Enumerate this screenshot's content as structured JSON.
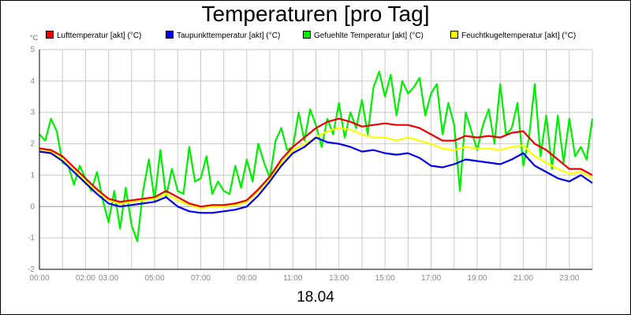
{
  "chart_data": {
    "type": "line",
    "title": "Temperaturen [pro Tag]",
    "date_label": "18.04",
    "unit_label": "°C",
    "xlabel": "",
    "ylabel": "°C",
    "xlim": [
      0,
      24
    ],
    "ylim": [
      -2,
      5
    ],
    "grid": true,
    "legend_position": "top",
    "x_ticks": [
      {
        "v": 0,
        "label": "00:00"
      },
      {
        "v": 2,
        "label": "02:00"
      },
      {
        "v": 3,
        "label": "03:00"
      },
      {
        "v": 5,
        "label": "05:00"
      },
      {
        "v": 7,
        "label": "07:00"
      },
      {
        "v": 9,
        "label": "09:00"
      },
      {
        "v": 11,
        "label": "11:00"
      },
      {
        "v": 13,
        "label": "13:00"
      },
      {
        "v": 15,
        "label": "15:00"
      },
      {
        "v": 17,
        "label": "17:00"
      },
      {
        "v": 19,
        "label": "19:00"
      },
      {
        "v": 21,
        "label": "21:00"
      },
      {
        "v": 23,
        "label": "23:00"
      }
    ],
    "y_ticks": [
      -2,
      -1,
      0,
      1,
      2,
      3,
      4,
      5
    ],
    "series": [
      {
        "name": "Gefuehlte Temperatur [akt] (°C)",
        "color": "#00ee00",
        "points": [
          [
            0,
            2.3
          ],
          [
            0.25,
            2.1
          ],
          [
            0.5,
            2.8
          ],
          [
            0.75,
            2.4
          ],
          [
            1,
            1.4
          ],
          [
            1.25,
            1.3
          ],
          [
            1.5,
            0.7
          ],
          [
            1.75,
            1.3
          ],
          [
            2,
            0.9
          ],
          [
            2.25,
            0.5
          ],
          [
            2.5,
            1.1
          ],
          [
            2.75,
            0.2
          ],
          [
            3,
            -0.5
          ],
          [
            3.25,
            0.5
          ],
          [
            3.5,
            -0.7
          ],
          [
            3.75,
            0.6
          ],
          [
            4,
            -0.6
          ],
          [
            4.25,
            -1.1
          ],
          [
            4.5,
            0.5
          ],
          [
            4.75,
            1.5
          ],
          [
            5,
            0.2
          ],
          [
            5.25,
            1.8
          ],
          [
            5.5,
            0.3
          ],
          [
            5.75,
            1.2
          ],
          [
            6,
            0.5
          ],
          [
            6.25,
            0.4
          ],
          [
            6.5,
            1.9
          ],
          [
            6.75,
            0.8
          ],
          [
            7,
            0.9
          ],
          [
            7.25,
            1.6
          ],
          [
            7.5,
            0.4
          ],
          [
            7.75,
            0.8
          ],
          [
            8,
            0.5
          ],
          [
            8.25,
            0.4
          ],
          [
            8.5,
            1.3
          ],
          [
            8.75,
            0.6
          ],
          [
            9,
            1.5
          ],
          [
            9.25,
            0.8
          ],
          [
            9.5,
            2.0
          ],
          [
            9.75,
            1.4
          ],
          [
            10,
            0.9
          ],
          [
            10.25,
            2.1
          ],
          [
            10.5,
            2.5
          ],
          [
            10.75,
            1.8
          ],
          [
            11,
            1.9
          ],
          [
            11.25,
            3.0
          ],
          [
            11.5,
            2.1
          ],
          [
            11.75,
            3.1
          ],
          [
            12,
            2.6
          ],
          [
            12.25,
            1.9
          ],
          [
            12.5,
            2.8
          ],
          [
            12.75,
            2.3
          ],
          [
            13,
            3.3
          ],
          [
            13.25,
            2.2
          ],
          [
            13.5,
            3.0
          ],
          [
            13.75,
            2.5
          ],
          [
            14,
            3.4
          ],
          [
            14.25,
            2.3
          ],
          [
            14.5,
            3.8
          ],
          [
            14.75,
            4.3
          ],
          [
            15,
            3.5
          ],
          [
            15.25,
            4.2
          ],
          [
            15.5,
            2.9
          ],
          [
            15.75,
            4.0
          ],
          [
            16,
            3.6
          ],
          [
            16.25,
            3.8
          ],
          [
            16.5,
            4.1
          ],
          [
            16.75,
            2.9
          ],
          [
            17,
            3.6
          ],
          [
            17.25,
            3.9
          ],
          [
            17.5,
            2.3
          ],
          [
            17.75,
            3.3
          ],
          [
            18,
            2.6
          ],
          [
            18.25,
            0.5
          ],
          [
            18.5,
            3.0
          ],
          [
            18.75,
            2.4
          ],
          [
            19,
            1.8
          ],
          [
            19.25,
            2.6
          ],
          [
            19.5,
            3.1
          ],
          [
            19.75,
            2.0
          ],
          [
            20,
            3.9
          ],
          [
            20.25,
            2.3
          ],
          [
            20.5,
            2.5
          ],
          [
            20.75,
            3.3
          ],
          [
            21,
            1.3
          ],
          [
            21.25,
            2.2
          ],
          [
            21.5,
            3.9
          ],
          [
            21.75,
            1.6
          ],
          [
            22,
            2.9
          ],
          [
            22.25,
            1.2
          ],
          [
            22.5,
            2.9
          ],
          [
            22.75,
            1.4
          ],
          [
            23,
            2.8
          ],
          [
            23.25,
            1.6
          ],
          [
            23.5,
            1.9
          ],
          [
            23.75,
            1.5
          ],
          [
            24,
            2.8
          ]
        ]
      },
      {
        "name": "Feuchtkugeltemperatur [akt] (°C)",
        "color": "#ffff00",
        "points": [
          [
            0,
            1.8
          ],
          [
            0.5,
            1.75
          ],
          [
            1,
            1.5
          ],
          [
            1.5,
            1.2
          ],
          [
            2,
            0.8
          ],
          [
            2.5,
            0.5
          ],
          [
            3,
            0.2
          ],
          [
            3.5,
            0.1
          ],
          [
            4,
            0.15
          ],
          [
            4.5,
            0.2
          ],
          [
            5,
            0.25
          ],
          [
            5.5,
            0.4
          ],
          [
            6,
            0.2
          ],
          [
            6.5,
            0.05
          ],
          [
            7,
            -0.05
          ],
          [
            7.5,
            0.0
          ],
          [
            8,
            0.0
          ],
          [
            8.5,
            0.05
          ],
          [
            9,
            0.15
          ],
          [
            9.5,
            0.5
          ],
          [
            10,
            0.9
          ],
          [
            10.5,
            1.4
          ],
          [
            11,
            1.8
          ],
          [
            11.5,
            2.0
          ],
          [
            12,
            2.2
          ],
          [
            12.5,
            2.4
          ],
          [
            13,
            2.5
          ],
          [
            13.5,
            2.45
          ],
          [
            14,
            2.3
          ],
          [
            14.5,
            2.2
          ],
          [
            15,
            2.2
          ],
          [
            15.5,
            2.1
          ],
          [
            16,
            2.2
          ],
          [
            16.5,
            2.1
          ],
          [
            17,
            2.0
          ],
          [
            17.5,
            1.85
          ],
          [
            18,
            1.8
          ],
          [
            18.5,
            1.9
          ],
          [
            19,
            1.85
          ],
          [
            19.5,
            1.85
          ],
          [
            20,
            1.8
          ],
          [
            20.5,
            1.9
          ],
          [
            21,
            1.95
          ],
          [
            21.5,
            1.6
          ],
          [
            22,
            1.4
          ],
          [
            22.5,
            1.2
          ],
          [
            23,
            1.05
          ],
          [
            23.5,
            1.1
          ],
          [
            24,
            0.9
          ]
        ]
      },
      {
        "name": "Lufttemperatur [akt] (°C)",
        "color": "#ee0000",
        "points": [
          [
            0,
            1.85
          ],
          [
            0.5,
            1.8
          ],
          [
            1,
            1.6
          ],
          [
            1.5,
            1.25
          ],
          [
            2,
            0.9
          ],
          [
            2.5,
            0.55
          ],
          [
            3,
            0.25
          ],
          [
            3.5,
            0.15
          ],
          [
            4,
            0.2
          ],
          [
            4.5,
            0.25
          ],
          [
            5,
            0.3
          ],
          [
            5.5,
            0.5
          ],
          [
            6,
            0.3
          ],
          [
            6.5,
            0.1
          ],
          [
            7,
            0.0
          ],
          [
            7.5,
            0.05
          ],
          [
            8,
            0.05
          ],
          [
            8.5,
            0.1
          ],
          [
            9,
            0.2
          ],
          [
            9.5,
            0.55
          ],
          [
            10,
            0.95
          ],
          [
            10.5,
            1.5
          ],
          [
            11,
            1.9
          ],
          [
            11.5,
            2.2
          ],
          [
            12,
            2.5
          ],
          [
            12.5,
            2.7
          ],
          [
            13,
            2.8
          ],
          [
            13.5,
            2.7
          ],
          [
            14,
            2.55
          ],
          [
            14.5,
            2.6
          ],
          [
            15,
            2.65
          ],
          [
            15.5,
            2.6
          ],
          [
            16,
            2.6
          ],
          [
            16.5,
            2.5
          ],
          [
            17,
            2.3
          ],
          [
            17.5,
            2.1
          ],
          [
            18,
            2.1
          ],
          [
            18.5,
            2.25
          ],
          [
            19,
            2.2
          ],
          [
            19.5,
            2.25
          ],
          [
            20,
            2.2
          ],
          [
            20.5,
            2.35
          ],
          [
            21,
            2.4
          ],
          [
            21.5,
            2.0
          ],
          [
            22,
            1.8
          ],
          [
            22.5,
            1.5
          ],
          [
            23,
            1.2
          ],
          [
            23.5,
            1.2
          ],
          [
            24,
            1.0
          ]
        ]
      },
      {
        "name": "Taupunkttemperatur [akt] (°C)",
        "color": "#0000ee",
        "points": [
          [
            0,
            1.75
          ],
          [
            0.5,
            1.7
          ],
          [
            1,
            1.45
          ],
          [
            1.5,
            1.1
          ],
          [
            2,
            0.75
          ],
          [
            2.5,
            0.4
          ],
          [
            3,
            0.1
          ],
          [
            3.5,
            0.0
          ],
          [
            4,
            0.05
          ],
          [
            4.5,
            0.1
          ],
          [
            5,
            0.15
          ],
          [
            5.5,
            0.3
          ],
          [
            6,
            0.0
          ],
          [
            6.5,
            -0.15
          ],
          [
            7,
            -0.2
          ],
          [
            7.5,
            -0.2
          ],
          [
            8,
            -0.15
          ],
          [
            8.5,
            -0.1
          ],
          [
            9,
            0.0
          ],
          [
            9.5,
            0.35
          ],
          [
            10,
            0.8
          ],
          [
            10.5,
            1.3
          ],
          [
            11,
            1.7
          ],
          [
            11.5,
            1.9
          ],
          [
            12,
            2.2
          ],
          [
            12.5,
            2.05
          ],
          [
            13,
            2.0
          ],
          [
            13.5,
            1.9
          ],
          [
            14,
            1.75
          ],
          [
            14.5,
            1.8
          ],
          [
            15,
            1.7
          ],
          [
            15.5,
            1.65
          ],
          [
            16,
            1.7
          ],
          [
            16.5,
            1.55
          ],
          [
            17,
            1.3
          ],
          [
            17.5,
            1.25
          ],
          [
            18,
            1.35
          ],
          [
            18.5,
            1.5
          ],
          [
            19,
            1.45
          ],
          [
            19.5,
            1.4
          ],
          [
            20,
            1.35
          ],
          [
            20.5,
            1.5
          ],
          [
            21,
            1.7
          ],
          [
            21.5,
            1.3
          ],
          [
            22,
            1.1
          ],
          [
            22.5,
            0.9
          ],
          [
            23,
            0.8
          ],
          [
            23.5,
            1.0
          ],
          [
            24,
            0.75
          ]
        ]
      }
    ],
    "legend": [
      {
        "label": "Lufttemperatur [akt] (°C)",
        "color": "#ee0000"
      },
      {
        "label": "Taupunkttemperatur [akt] (°C)",
        "color": "#0000ee"
      },
      {
        "label": "Gefuehlte Temperatur [akt] (°C)",
        "color": "#00ee00"
      },
      {
        "label": "Feuchtkugeltemperatur [akt] (°C)",
        "color": "#ffff00"
      }
    ]
  }
}
